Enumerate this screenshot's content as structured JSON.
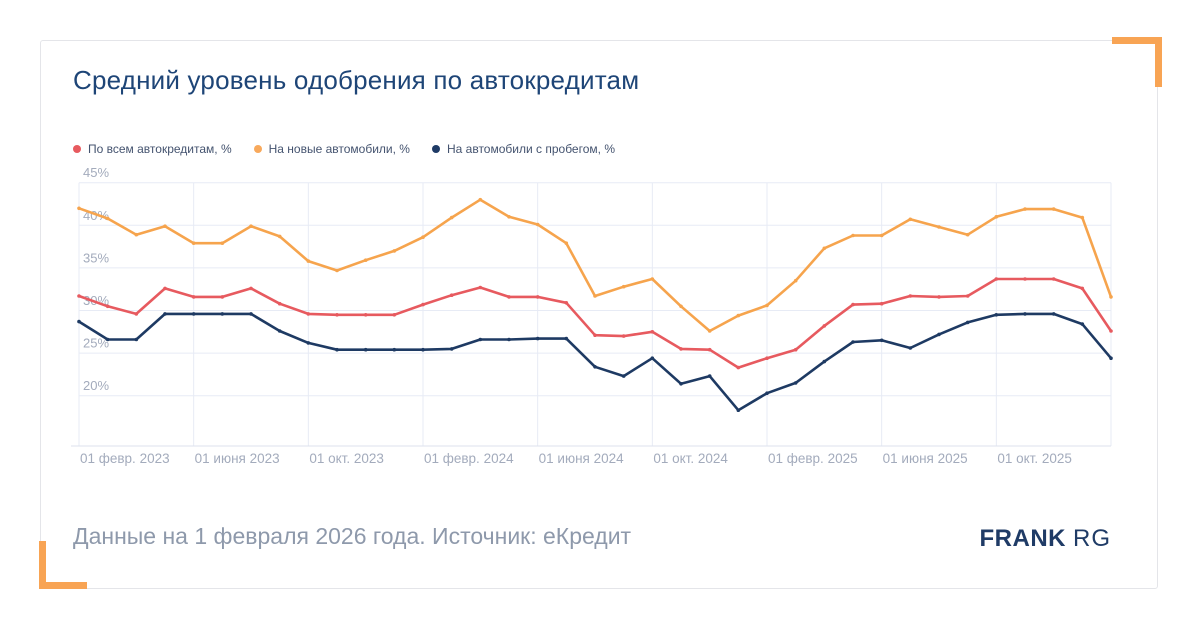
{
  "title": "Средний уровень одобрения по автокредитам",
  "legend": [
    {
      "label": "По всем автокредитам, %",
      "color": "#e75a5f"
    },
    {
      "label": "На новые автомобили, %",
      "color": "#f8a95c"
    },
    {
      "label": "На автомобили с пробегом, %",
      "color": "#1f3b66"
    }
  ],
  "footer": {
    "note": "Данные на 1 февраля 2026 года. Источник: еКредит",
    "brand_primary": "FRANK",
    "brand_secondary": "RG"
  },
  "colors": {
    "grid": "#e7ebf5",
    "axis_line": "#dde2ee",
    "tick_label": "#a3abbc",
    "title": "#1e4577",
    "accent_bracket": "#f8a454",
    "series_all": "#e75a5f",
    "series_new": "#f6a44d",
    "series_used": "#1e3a63"
  },
  "chart_data": {
    "type": "line",
    "title": "Средний уровень одобрения по автокредитам",
    "xlabel": "",
    "ylabel": "",
    "grid": true,
    "legend_position": "top-left",
    "ylim": [
      14.1,
      45
    ],
    "y_ticks": [
      45,
      40,
      35,
      30,
      25,
      20
    ],
    "y_tick_labels": [
      "45%",
      "40%",
      "35%",
      "30%",
      "25%",
      "20%"
    ],
    "x": [
      "2023-02",
      "2023-03",
      "2023-04",
      "2023-05",
      "2023-06",
      "2023-07",
      "2023-08",
      "2023-09",
      "2023-10",
      "2023-11",
      "2023-12",
      "2024-01",
      "2024-02",
      "2024-03",
      "2024-04",
      "2024-05",
      "2024-06",
      "2024-07",
      "2024-08",
      "2024-09",
      "2024-10",
      "2024-11",
      "2024-12",
      "2025-01",
      "2025-02",
      "2025-03",
      "2025-04",
      "2025-05",
      "2025-06",
      "2025-07",
      "2025-08",
      "2025-09",
      "2025-10",
      "2025-11",
      "2025-12",
      "2026-01",
      "2026-02"
    ],
    "x_ticks": [
      {
        "index": 0,
        "label": "01 февр. 2023"
      },
      {
        "index": 4,
        "label": "01 июня 2023"
      },
      {
        "index": 8,
        "label": "01 окт. 2023"
      },
      {
        "index": 12,
        "label": "01 февр. 2024"
      },
      {
        "index": 16,
        "label": "01 июня 2024"
      },
      {
        "index": 20,
        "label": "01 окт. 2024"
      },
      {
        "index": 24,
        "label": "01 февр. 2025"
      },
      {
        "index": 28,
        "label": "01 июня 2025"
      },
      {
        "index": 32,
        "label": "01 окт. 2025"
      }
    ],
    "series": [
      {
        "name": "По всем автокредитам, %",
        "color": "#e75a5f",
        "values": [
          31.7,
          30.5,
          29.6,
          32.6,
          31.6,
          31.6,
          32.6,
          30.8,
          29.6,
          29.5,
          29.5,
          29.5,
          30.7,
          31.8,
          32.7,
          31.6,
          31.6,
          30.9,
          27.1,
          27.0,
          27.5,
          25.5,
          25.4,
          23.3,
          24.4,
          25.4,
          28.2,
          30.7,
          30.8,
          31.7,
          31.6,
          31.7,
          33.7,
          33.7,
          33.7,
          32.6,
          27.6
        ]
      },
      {
        "name": "На новые автомобили, %",
        "color": "#f6a44d",
        "values": [
          42.0,
          40.8,
          38.9,
          39.9,
          37.9,
          37.9,
          39.9,
          38.7,
          35.8,
          34.7,
          35.9,
          37.0,
          38.6,
          40.9,
          43.0,
          41.0,
          40.1,
          37.9,
          31.7,
          32.8,
          33.7,
          30.5,
          27.6,
          29.4,
          30.6,
          33.5,
          37.3,
          38.8,
          38.8,
          40.7,
          39.8,
          38.9,
          41.0,
          41.9,
          41.9,
          40.9,
          31.6
        ]
      },
      {
        "name": "На автомобили с пробегом, %",
        "color": "#1e3a63",
        "values": [
          28.7,
          26.6,
          26.6,
          29.6,
          29.6,
          29.6,
          29.6,
          27.6,
          26.2,
          25.4,
          25.4,
          25.4,
          25.4,
          25.5,
          26.6,
          26.6,
          26.7,
          26.7,
          23.4,
          22.3,
          24.4,
          21.4,
          22.3,
          18.3,
          20.3,
          21.5,
          24.0,
          26.3,
          26.5,
          25.6,
          27.2,
          28.6,
          29.5,
          29.6,
          29.6,
          28.4,
          24.4
        ]
      }
    ]
  }
}
